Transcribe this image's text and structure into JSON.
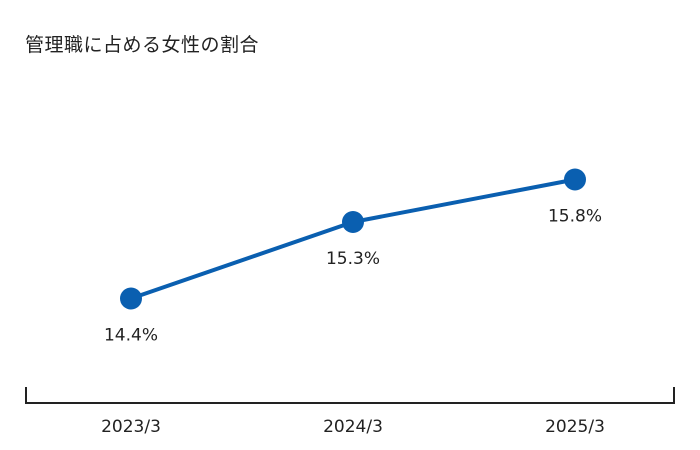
{
  "chart_data": {
    "type": "line",
    "title": "管理職に占める女性の割合",
    "categories": [
      "2023/3",
      "2024/3",
      "2025/3"
    ],
    "series": [
      {
        "values": [
          14.4,
          15.3,
          15.8
        ],
        "data_labels": [
          "14.4%",
          "15.3%",
          "15.8%"
        ]
      }
    ],
    "xlabel": "",
    "ylabel": "",
    "y_unit": "%",
    "ylim": [
      13.5,
      16.5
    ],
    "grid": false,
    "legend": "none",
    "colors": {
      "line": "#0a5fb0",
      "axis": "#222222",
      "text": "#222222"
    }
  }
}
